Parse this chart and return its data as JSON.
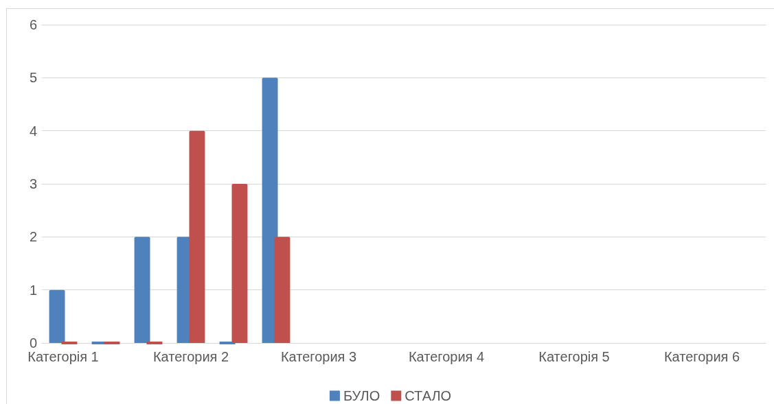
{
  "chart_data": {
    "type": "bar",
    "categories": [
      "Категорія 1",
      null,
      null,
      "Категория 2",
      null,
      null,
      "Категория 3",
      null,
      null,
      "Категория 4",
      null,
      null,
      "Категорія 5",
      null,
      null,
      "Категория 6",
      null
    ],
    "series": [
      {
        "name": "БУЛО",
        "color": "#4f81bd",
        "values": [
          1,
          0,
          2,
          2,
          0,
          5,
          null,
          null,
          null,
          null,
          null,
          null,
          null,
          null,
          null,
          null,
          null
        ]
      },
      {
        "name": "СТАЛО",
        "color": "#c0504d",
        "values": [
          0,
          0,
          0,
          4,
          3,
          2,
          null,
          null,
          null,
          null,
          null,
          null,
          null,
          null,
          null,
          null,
          null
        ]
      }
    ],
    "ylim": [
      0,
      6
    ],
    "yticks": [
      0,
      1,
      2,
      3,
      4,
      5,
      6
    ],
    "grid": "y",
    "legend": "bottom"
  }
}
